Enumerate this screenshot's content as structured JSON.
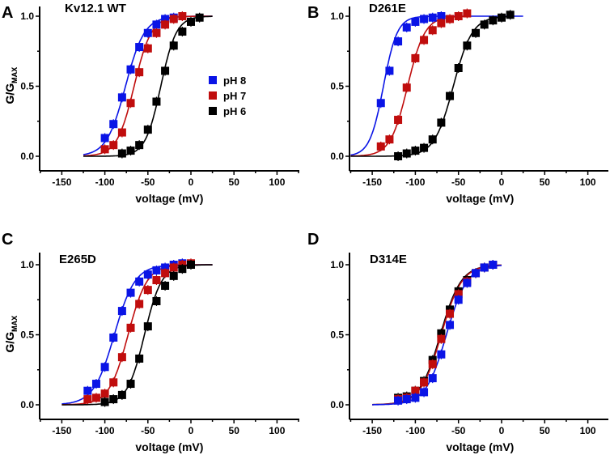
{
  "chart_data": [
    {
      "type": "scatter",
      "panel": "A",
      "title": "Kv12.1 WT",
      "xlabel": "voltage (mV)",
      "ylabel": "G/G",
      "ylabel_sub": "MAX",
      "xlim": [
        -175,
        125
      ],
      "ylim": [
        -0.1,
        1.05
      ],
      "xticks": [
        -150,
        -100,
        -50,
        0,
        50,
        100
      ],
      "xtick_labels": [
        "-150",
        "-100",
        "-50",
        "0",
        "50",
        "100"
      ],
      "yticks": [
        0.0,
        0.5,
        1.0
      ],
      "ytick_labels": [
        "0.0",
        "0.5",
        "1.0"
      ],
      "legend": [
        "pH 8",
        "pH 7",
        "pH 6"
      ],
      "legend_position": "right",
      "series": [
        {
          "name": "pH 8",
          "color": "#0a14e6",
          "x": [
            -100,
            -90,
            -80,
            -70,
            -60,
            -50,
            -40,
            -30,
            -20
          ],
          "y": [
            0.13,
            0.23,
            0.42,
            0.62,
            0.78,
            0.88,
            0.94,
            0.98,
            0.99
          ],
          "fit": {
            "v_half": -76,
            "k": 11,
            "x_range": [
              -125,
              25
            ]
          }
        },
        {
          "name": "pH 7",
          "color": "#c00d0d",
          "x": [
            -100,
            -90,
            -80,
            -70,
            -60,
            -50,
            -40,
            -30,
            -20,
            -10
          ],
          "y": [
            0.05,
            0.08,
            0.17,
            0.38,
            0.6,
            0.77,
            0.88,
            0.94,
            0.98,
            1.0
          ],
          "fit": {
            "v_half": -66,
            "k": 10,
            "x_range": [
              -125,
              25
            ]
          }
        },
        {
          "name": "pH 6",
          "color": "#000000",
          "x": [
            -80,
            -70,
            -60,
            -50,
            -40,
            -30,
            -20,
            -10,
            0,
            10
          ],
          "y": [
            0.02,
            0.04,
            0.08,
            0.19,
            0.39,
            0.61,
            0.79,
            0.89,
            0.96,
            0.99
          ],
          "fit": {
            "v_half": -35,
            "k": 9,
            "x_range": [
              -125,
              25
            ]
          }
        }
      ]
    },
    {
      "type": "scatter",
      "panel": "B",
      "title": "D261E",
      "xlabel": "voltage (mV)",
      "ylabel": "G/G",
      "ylabel_sub": "MAX",
      "xlim": [
        -175,
        125
      ],
      "ylim": [
        -0.1,
        1.05
      ],
      "xticks": [
        -150,
        -100,
        -50,
        0,
        50,
        100
      ],
      "xtick_labels": [
        "-150",
        "-100",
        "-50",
        "0",
        "50",
        "100"
      ],
      "yticks": [
        0.0,
        0.5,
        1.0
      ],
      "ytick_labels": [
        "0.0",
        "0.5",
        "1.0"
      ],
      "series": [
        {
          "name": "pH 8",
          "color": "#0a14e6",
          "x": [
            -140,
            -130,
            -120,
            -110,
            -100,
            -90,
            -80,
            -70
          ],
          "y": [
            0.38,
            0.61,
            0.82,
            0.92,
            0.96,
            0.98,
            0.99,
            1.0
          ],
          "fit": {
            "v_half": -137,
            "k": 8,
            "x_range": [
              -175,
              25
            ]
          }
        },
        {
          "name": "pH 7",
          "color": "#c00d0d",
          "x": [
            -140,
            -130,
            -120,
            -110,
            -100,
            -90,
            -80,
            -70,
            -60,
            -50,
            -40
          ],
          "y": [
            0.07,
            0.12,
            0.26,
            0.49,
            0.7,
            0.83,
            0.9,
            0.95,
            0.98,
            1.0,
            1.02
          ],
          "fit": {
            "v_half": -109,
            "k": 10,
            "x_range": [
              -175,
              -40
            ]
          }
        },
        {
          "name": "pH 6",
          "color": "#000000",
          "x": [
            -120,
            -110,
            -100,
            -90,
            -80,
            -70,
            -60,
            -50,
            -40,
            -30,
            -20,
            -10,
            0,
            10
          ],
          "y": [
            0.0,
            0.02,
            0.04,
            0.06,
            0.12,
            0.24,
            0.43,
            0.63,
            0.79,
            0.88,
            0.94,
            0.97,
            0.99,
            1.01
          ],
          "fit": {
            "v_half": -56,
            "k": 11,
            "x_range": [
              -175,
              10
            ]
          }
        }
      ]
    },
    {
      "type": "scatter",
      "panel": "C",
      "title": "E265D",
      "xlabel": "voltage (mV)",
      "ylabel": "G/G",
      "ylabel_sub": "MAX",
      "xlim": [
        -175,
        125
      ],
      "ylim": [
        -0.1,
        1.05
      ],
      "xticks": [
        -150,
        -100,
        -50,
        0,
        50,
        100
      ],
      "xtick_labels": [
        "-150",
        "-100",
        "-50",
        "0",
        "50",
        "100"
      ],
      "yticks": [
        0.0,
        0.5,
        1.0
      ],
      "ytick_labels": [
        "0.0",
        "0.5",
        "1.0"
      ],
      "series": [
        {
          "name": "pH 8",
          "color": "#0a14e6",
          "x": [
            -120,
            -110,
            -100,
            -90,
            -80,
            -70,
            -60,
            -50,
            -40,
            -30,
            -20,
            -10
          ],
          "y": [
            0.1,
            0.15,
            0.27,
            0.48,
            0.67,
            0.8,
            0.88,
            0.93,
            0.96,
            0.98,
            1.0,
            1.01
          ],
          "fit": {
            "v_half": -89,
            "k": 12,
            "x_range": [
              -150,
              25
            ]
          }
        },
        {
          "name": "pH 7",
          "color": "#c00d0d",
          "x": [
            -120,
            -110,
            -100,
            -90,
            -80,
            -70,
            -60,
            -50,
            -40,
            -30,
            -20,
            -10,
            0
          ],
          "y": [
            0.04,
            0.05,
            0.08,
            0.16,
            0.34,
            0.55,
            0.72,
            0.82,
            0.89,
            0.94,
            0.98,
            1.0,
            1.01
          ],
          "fit": {
            "v_half": -73,
            "k": 11,
            "x_range": [
              -150,
              25
            ]
          }
        },
        {
          "name": "pH 6",
          "color": "#000000",
          "x": [
            -100,
            -90,
            -80,
            -70,
            -60,
            -50,
            -40,
            -30,
            -20,
            -10,
            0
          ],
          "y": [
            0.02,
            0.04,
            0.07,
            0.15,
            0.33,
            0.56,
            0.74,
            0.85,
            0.92,
            0.97,
            1.0
          ],
          "fit": {
            "v_half": -54,
            "k": 10,
            "x_range": [
              -150,
              25
            ]
          }
        }
      ]
    },
    {
      "type": "scatter",
      "panel": "D",
      "title": "D314E",
      "xlabel": "voltage (mV)",
      "ylabel": "G/G",
      "ylabel_sub": "MAX",
      "xlim": [
        -175,
        125
      ],
      "ylim": [
        -0.1,
        1.05
      ],
      "xticks": [
        -150,
        -100,
        -50,
        0,
        50,
        100
      ],
      "xtick_labels": [
        "-150",
        "-100",
        "-50",
        "0",
        "50",
        "100"
      ],
      "yticks": [
        0.0,
        0.5,
        1.0
      ],
      "ytick_labels": [
        "0.0",
        "0.5",
        "1.0"
      ],
      "series": [
        {
          "name": "pH 6",
          "color": "#000000",
          "x": [
            -120,
            -110,
            -100,
            -90,
            -80,
            -70,
            -60,
            -50,
            -40,
            -30,
            -20,
            -10
          ],
          "y": [
            0.05,
            0.06,
            0.1,
            0.17,
            0.32,
            0.51,
            0.68,
            0.81,
            0.89,
            0.94,
            0.98,
            1.0
          ],
          "fit": {
            "v_half": -71,
            "k": 12,
            "x_range": [
              -150,
              0
            ]
          }
        },
        {
          "name": "pH 7",
          "color": "#c00d0d",
          "x": [
            -120,
            -110,
            -100,
            -90,
            -80,
            -70,
            -60,
            -50,
            -40,
            -30,
            -20,
            -10
          ],
          "y": [
            0.04,
            0.05,
            0.1,
            0.16,
            0.29,
            0.47,
            0.65,
            0.79,
            0.88,
            0.94,
            0.98,
            1.0
          ],
          "fit": {
            "v_half": -70,
            "k": 12,
            "x_range": [
              -150,
              0
            ]
          }
        },
        {
          "name": "pH 8",
          "color": "#0a14e6",
          "x": [
            -120,
            -110,
            -100,
            -90,
            -80,
            -70,
            -60,
            -50,
            -40,
            -30,
            -20,
            -10
          ],
          "y": [
            0.03,
            0.04,
            0.05,
            0.09,
            0.19,
            0.36,
            0.57,
            0.75,
            0.87,
            0.94,
            0.98,
            1.0
          ],
          "fit": {
            "v_half": -64,
            "k": 12,
            "x_range": [
              -150,
              0
            ]
          }
        }
      ]
    }
  ]
}
